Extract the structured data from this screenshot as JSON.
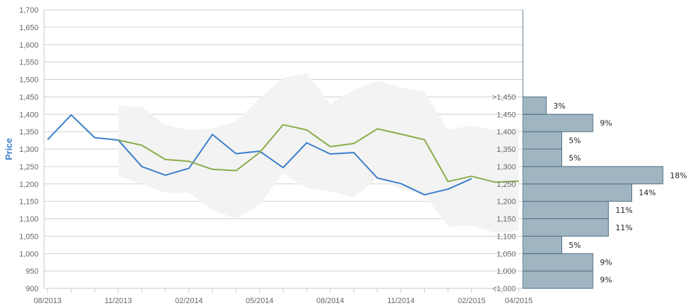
{
  "chart_data": {
    "type": "line",
    "ylabel": "Price",
    "ylim": [
      900,
      1700
    ],
    "y_ticks": [
      "900",
      "950",
      "1,000",
      "1,050",
      "1,100",
      "1,150",
      "1,200",
      "1,250",
      "1,300",
      "1,350",
      "1,400",
      "1,450",
      "1,500",
      "1,550",
      "1,600",
      "1,650",
      "1,700"
    ],
    "x_tick_labels": [
      "08/2013",
      "11/2013",
      "02/2014",
      "05/2014",
      "08/2014",
      "11/2014",
      "02/2015",
      "04/2015"
    ],
    "x_positions": [
      "08/2013",
      "09/2013",
      "10/2013",
      "11/2013",
      "12/2013",
      "01/2014",
      "02/2014",
      "03/2014",
      "04/2014",
      "05/2014",
      "06/2014",
      "07/2014",
      "08/2014",
      "09/2014",
      "10/2014",
      "11/2014",
      "12/2014",
      "01/2015",
      "02/2015",
      "03/2015",
      "04/2015"
    ],
    "series": [
      {
        "color": "#3a7fcc",
        "values": [
          1327,
          1398,
          1333,
          1326,
          1250,
          1225,
          1245,
          1342,
          1287,
          1294,
          1247,
          1318,
          1286,
          1290,
          1217,
          1201,
          1169,
          1185,
          1215,
          null,
          null
        ]
      },
      {
        "color": "#8aac4a",
        "values": [
          null,
          null,
          null,
          1326,
          1311,
          1270,
          1265,
          1242,
          1238,
          1290,
          1370,
          1355,
          1307,
          1316,
          1358,
          1343,
          1327,
          1207,
          1222,
          1205,
          1208
        ]
      }
    ],
    "band": {
      "color": "#f3f3f3",
      "upper": [
        null,
        null,
        null,
        1425,
        1420,
        1370,
        1355,
        1360,
        1380,
        1445,
        1505,
        1518,
        1430,
        1470,
        1495,
        1478,
        1465,
        1355,
        1368,
        1355,
        1360
      ],
      "lower": [
        null,
        null,
        null,
        1222,
        1200,
        1175,
        1175,
        1125,
        1100,
        1140,
        1230,
        1188,
        1178,
        1162,
        1215,
        1185,
        1168,
        1078,
        1080,
        1060,
        1065
      ]
    },
    "distribution": {
      "color": "#a0b5c2",
      "bins": [
        {
          "label": "<1,000",
          "percent": 9,
          "text": "9%"
        },
        {
          "label": "1,000",
          "percent": 9,
          "text": "9%"
        },
        {
          "label": "1,050",
          "percent": 5,
          "text": "5%"
        },
        {
          "label": "1,100",
          "percent": 11,
          "text": "11%"
        },
        {
          "label": "1,150",
          "percent": 11,
          "text": "11%"
        },
        {
          "label": "1,200",
          "percent": 14,
          "text": "14%"
        },
        {
          "label": "1,250",
          "percent": 18,
          "text": "18%"
        },
        {
          "label": "1,300",
          "percent": 5,
          "text": "5%"
        },
        {
          "label": "1,350",
          "percent": 5,
          "text": "5%"
        },
        {
          "label": "1,400",
          "percent": 9,
          "text": "9%"
        },
        {
          "label": "1,450",
          "percent": 3,
          "text": "3%"
        },
        {
          "label": ">1,450",
          "percent": 0,
          "text": ""
        }
      ]
    }
  }
}
